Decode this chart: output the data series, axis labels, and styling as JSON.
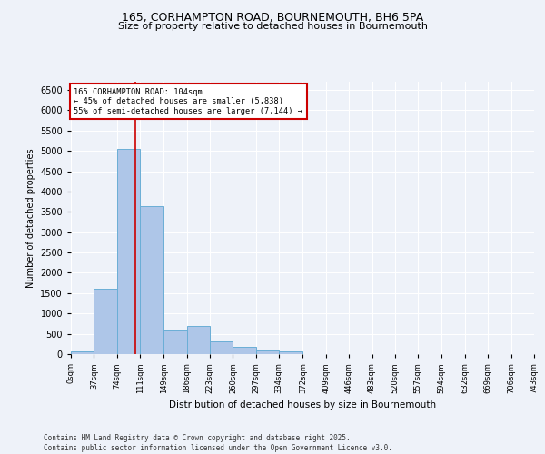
{
  "title_line1": "165, CORHAMPTON ROAD, BOURNEMOUTH, BH6 5PA",
  "title_line2": "Size of property relative to detached houses in Bournemouth",
  "xlabel": "Distribution of detached houses by size in Bournemouth",
  "ylabel": "Number of detached properties",
  "footer_line1": "Contains HM Land Registry data © Crown copyright and database right 2025.",
  "footer_line2": "Contains public sector information licensed under the Open Government Licence v3.0.",
  "bar_color": "#aec6e8",
  "bar_edge_color": "#6aaed6",
  "background_color": "#eef2f9",
  "grid_color": "#ffffff",
  "annotation_box_color": "#cc0000",
  "vline_color": "#cc0000",
  "property_size": 104,
  "annotation_text_lines": [
    "165 CORHAMPTON ROAD: 104sqm",
    "← 45% of detached houses are smaller (5,838)",
    "55% of semi-detached houses are larger (7,144) →"
  ],
  "bin_edges": [
    0,
    37,
    74,
    111,
    149,
    186,
    223,
    260,
    297,
    334,
    372,
    409,
    446,
    483,
    520,
    557,
    594,
    632,
    669,
    706,
    743
  ],
  "bin_counts": [
    75,
    1600,
    5050,
    3650,
    600,
    700,
    310,
    175,
    100,
    75,
    0,
    0,
    0,
    0,
    0,
    0,
    0,
    0,
    0,
    0
  ],
  "ylim": [
    0,
    6700
  ],
  "yticks": [
    0,
    500,
    1000,
    1500,
    2000,
    2500,
    3000,
    3500,
    4000,
    4500,
    5000,
    5500,
    6000,
    6500
  ]
}
